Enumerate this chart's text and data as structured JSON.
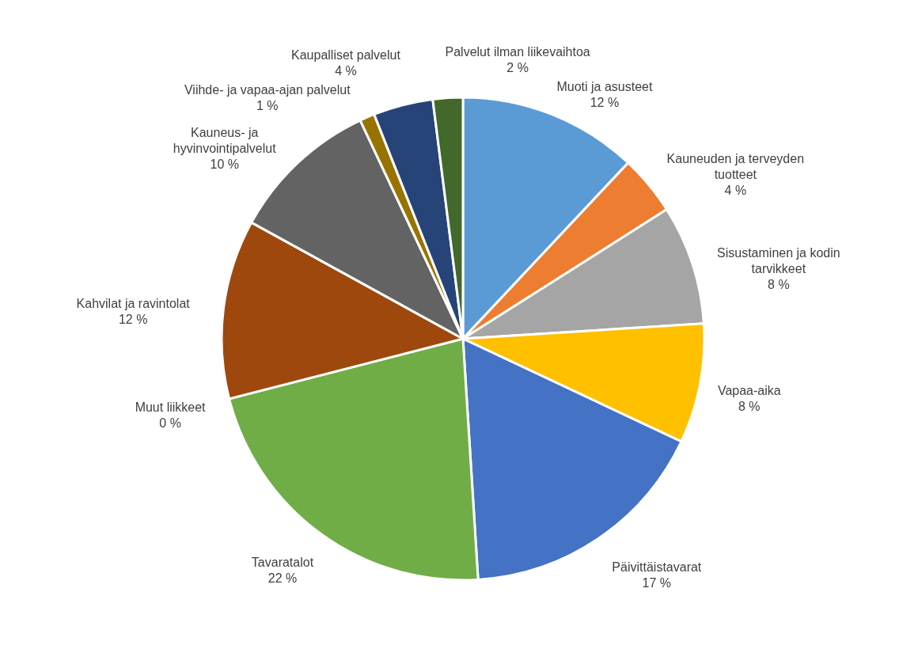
{
  "chart_data": {
    "type": "pie",
    "categories": [
      "Muoti ja asusteet",
      "Kauneuden ja terveyden tuotteet",
      "Sisustaminen ja kodin tarvikkeet",
      "Vapaa-aika",
      "Päivittäistavarat",
      "Tavaratalot",
      "Muut liikkeet",
      "Kahvilat ja ravintolat",
      "Kauneus- ja hyvinvointipalvelut",
      "Viihde- ja vapaa-ajan palvelut",
      "Kaupalliset palvelut",
      "Palvelut ilman liikevaihtoa"
    ],
    "values": [
      12,
      4,
      8,
      8,
      17,
      22,
      0,
      12,
      10,
      1,
      4,
      2
    ],
    "value_labels": [
      "12 %",
      "4 %",
      "8 %",
      "8 %",
      "17 %",
      "22 %",
      "0 %",
      "12 %",
      "10 %",
      "1 %",
      "4 %",
      "2 %"
    ],
    "colors": [
      "#5b9bd5",
      "#ed7d31",
      "#a5a5a5",
      "#ffc000",
      "#4472c4",
      "#70ad47",
      "#255e91",
      "#9e480e",
      "#636363",
      "#997300",
      "#264478",
      "#43682b"
    ]
  }
}
